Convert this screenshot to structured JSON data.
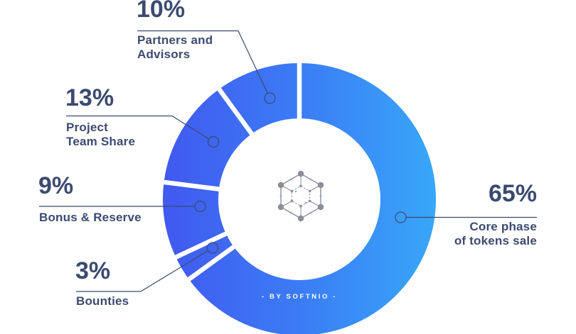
{
  "chart_data": {
    "type": "donut",
    "segments": [
      {
        "id": "core",
        "label": "Core phase of tokens sale",
        "value": 65
      },
      {
        "id": "bounties",
        "label": "Bounties",
        "value": 3
      },
      {
        "id": "bonus",
        "label": "Bonus & Reserve",
        "value": 9
      },
      {
        "id": "team",
        "label": "Project Team Share",
        "value": 13
      },
      {
        "id": "partners",
        "label": "Partners and Advisors",
        "value": 10
      }
    ],
    "start_angle_deg": 0,
    "direction": "clockwise",
    "watermark": "- BY SOFTNIO -",
    "center_icon": "hexagon-network-icon",
    "colors": {
      "gradient_start": "#4159F0",
      "gradient_mid": "#3B7CF5",
      "gradient_end": "#38A7F9",
      "label_text": "#3B4A70",
      "watermark_text": "#FFFFFF",
      "center_icon": "#6F7180",
      "icon_dot": "#5F8DF7"
    }
  },
  "callouts": {
    "partners": {
      "pct": "10%",
      "line1": "Partners and",
      "line2": "Advisors"
    },
    "team": {
      "pct": "13%",
      "line1": "Project",
      "line2": "Team Share"
    },
    "bonus": {
      "pct": "9%",
      "line1": "Bonus & Reserve"
    },
    "bounties": {
      "pct": "3%",
      "line1": "Bounties"
    },
    "core": {
      "pct": "65%",
      "line1": "Core phase",
      "line2": "of tokens sale"
    }
  }
}
